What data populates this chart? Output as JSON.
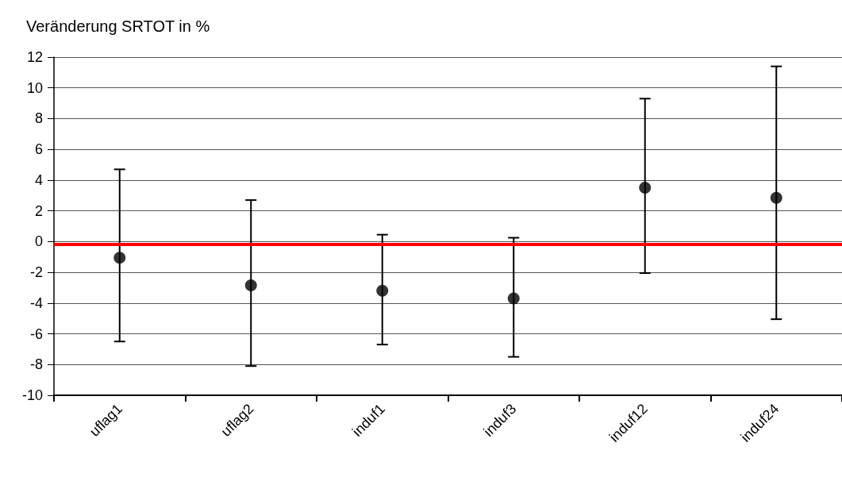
{
  "chart_data": {
    "type": "scatter",
    "title": "Veränderung SRTOT in %",
    "categories": [
      "uflag1",
      "uflag2",
      "induf1",
      "induf3",
      "induf12",
      "induf24"
    ],
    "series": [
      {
        "color": "#000000",
        "values": [
          -1.05,
          -2.85,
          -3.2,
          -3.7,
          3.5,
          2.85
        ],
        "errors": [
          [
            -6.5,
            4.7
          ],
          [
            -8.1,
            2.7
          ],
          [
            -6.7,
            0.45
          ],
          [
            -7.5,
            0.25
          ],
          [
            -2.05,
            9.3
          ],
          [
            -5.05,
            11.4
          ]
        ]
      }
    ],
    "ylim": [
      -10,
      12
    ],
    "yticks": [
      -10,
      -8,
      -6,
      -4,
      -2,
      0,
      2,
      4,
      6,
      8,
      10,
      12
    ],
    "grid": "y",
    "marker": "circle",
    "ref_lines": [
      {
        "axis": "y",
        "value": -0.15,
        "color": "#ff0000"
      }
    ]
  }
}
